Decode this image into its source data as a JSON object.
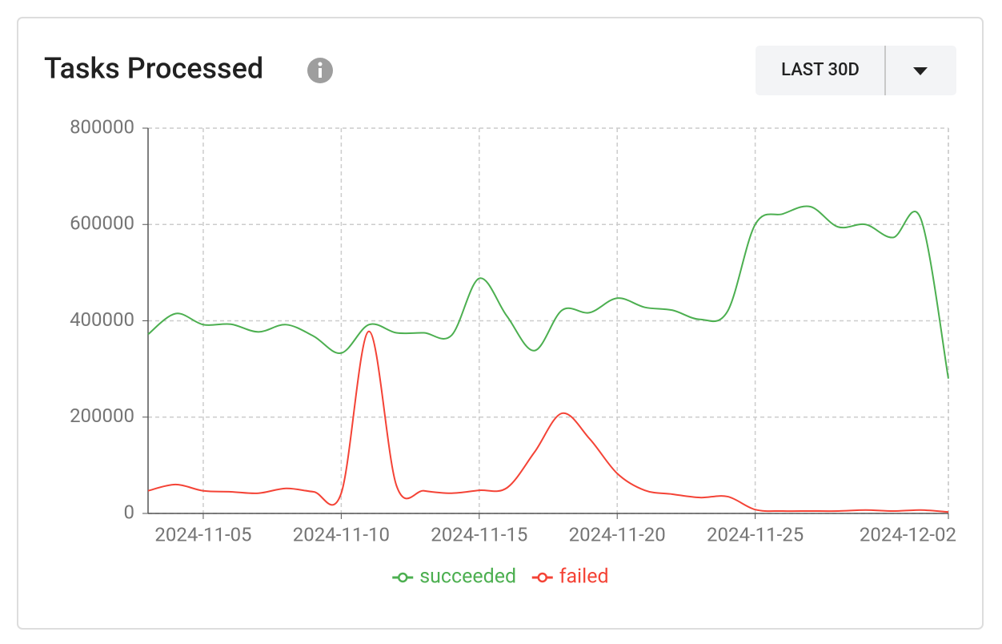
{
  "header": {
    "title": "Tasks Processed",
    "range_button": "LAST 30D"
  },
  "chart_data": {
    "type": "line",
    "x": [
      "2024-11-03",
      "2024-11-04",
      "2024-11-05",
      "2024-11-06",
      "2024-11-07",
      "2024-11-08",
      "2024-11-09",
      "2024-11-10",
      "2024-11-11",
      "2024-11-12",
      "2024-11-13",
      "2024-11-14",
      "2024-11-15",
      "2024-11-16",
      "2024-11-17",
      "2024-11-18",
      "2024-11-19",
      "2024-11-20",
      "2024-11-21",
      "2024-11-22",
      "2024-11-23",
      "2024-11-24",
      "2024-11-25",
      "2024-11-26",
      "2024-11-27",
      "2024-11-28",
      "2024-11-29",
      "2024-11-30",
      "2024-12-01",
      "2024-12-02"
    ],
    "series": [
      {
        "name": "succeeded",
        "color": "#4caf50",
        "values": [
          372000,
          415000,
          392000,
          393000,
          377000,
          392000,
          368000,
          333000,
          392000,
          375000,
          375000,
          370000,
          488000,
          410000,
          338000,
          422000,
          417000,
          447000,
          428000,
          422000,
          403000,
          420000,
          600000,
          622000,
          637000,
          595000,
          600000,
          573000,
          612000,
          280000
        ]
      },
      {
        "name": "failed",
        "color": "#f44336",
        "values": [
          47000,
          60000,
          47000,
          45000,
          42000,
          52000,
          45000,
          42000,
          378000,
          58000,
          47000,
          42000,
          48000,
          53000,
          127000,
          208000,
          155000,
          83000,
          48000,
          40000,
          33000,
          35000,
          8000,
          5000,
          5000,
          5000,
          7000,
          5000,
          7000,
          3000
        ]
      }
    ],
    "xlim": [
      "2024-11-03",
      "2024-12-02"
    ],
    "xticks": [
      "2024-11-05",
      "2024-11-10",
      "2024-11-15",
      "2024-11-20",
      "2024-11-25",
      "2024-12-02"
    ],
    "ylim": [
      0,
      800000
    ],
    "yticks": [
      0,
      200000,
      400000,
      600000,
      800000
    ],
    "grid": true
  }
}
